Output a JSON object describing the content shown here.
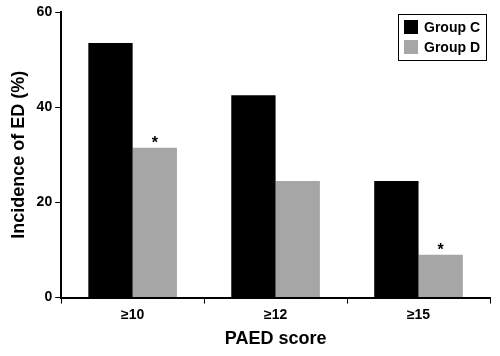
{
  "chart_data": {
    "type": "bar",
    "x_label": "PAED score",
    "y_label": "Incidence of ED (%)",
    "categories": [
      "≥10",
      "≥12",
      "≥15"
    ],
    "series": [
      {
        "name": "Group C",
        "color": "#000000",
        "values": [
          53.5,
          42.5,
          24.5
        ]
      },
      {
        "name": "Group D",
        "color": "#a6a6a6",
        "values": [
          31.5,
          24.5,
          9
        ]
      }
    ],
    "annotations": [
      {
        "text": "*",
        "category": "≥10",
        "series": "Group D"
      },
      {
        "text": "*",
        "category": "≥15",
        "series": "Group D"
      }
    ],
    "ylim": [
      0,
      60
    ],
    "yticks": [
      0,
      20,
      40,
      60
    ],
    "grid": false,
    "legend": "upper right"
  }
}
